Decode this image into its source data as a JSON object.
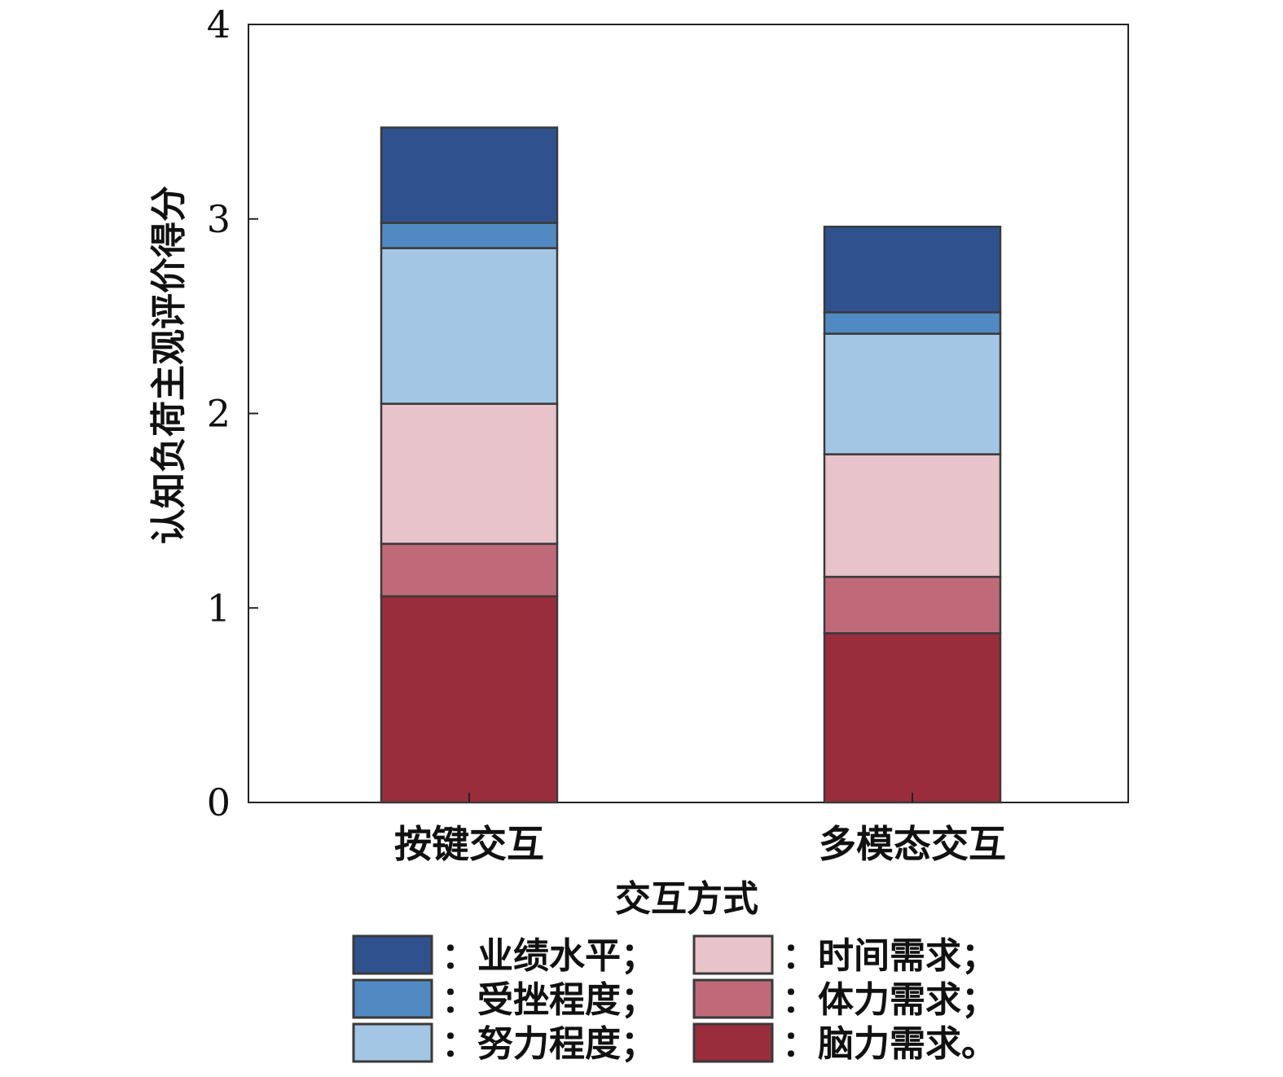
{
  "chart_data": {
    "type": "bar",
    "stacked": true,
    "categories": [
      "按键交互",
      "多模态交互"
    ],
    "series": [
      {
        "name": "脑力需求",
        "values": [
          1.06,
          0.87
        ],
        "color": "#9a2d3c"
      },
      {
        "name": "体力需求",
        "values": [
          0.27,
          0.29
        ],
        "color": "#c06a79"
      },
      {
        "name": "时间需求",
        "values": [
          0.72,
          0.63
        ],
        "color": "#e8c3c9"
      },
      {
        "name": "努力程度",
        "values": [
          0.8,
          0.62
        ],
        "color": "#a3c6e5"
      },
      {
        "name": "受挫程度",
        "values": [
          0.13,
          0.11
        ],
        "color": "#518ac3"
      },
      {
        "name": "业绩水平",
        "values": [
          0.49,
          0.44
        ],
        "color": "#2f528f"
      }
    ],
    "xlabel": "交互方式",
    "ylabel": "认知负荷主观评价得分",
    "ylim": [
      0,
      4
    ],
    "yticks": [
      0,
      1,
      2,
      3,
      4
    ],
    "grid": false,
    "legend": {
      "position": "bottom",
      "entries": [
        {
          "swatch": "业绩水平",
          "label": "：业绩水平；"
        },
        {
          "swatch": "时间需求",
          "label": "：时间需求；"
        },
        {
          "swatch": "受挫程度",
          "label": "：受挫程度；"
        },
        {
          "swatch": "体力需求",
          "label": "：体力需求；"
        },
        {
          "swatch": "努力程度",
          "label": "：努力程度；"
        },
        {
          "swatch": "脑力需求",
          "label": "：脑力需求。"
        }
      ]
    }
  }
}
